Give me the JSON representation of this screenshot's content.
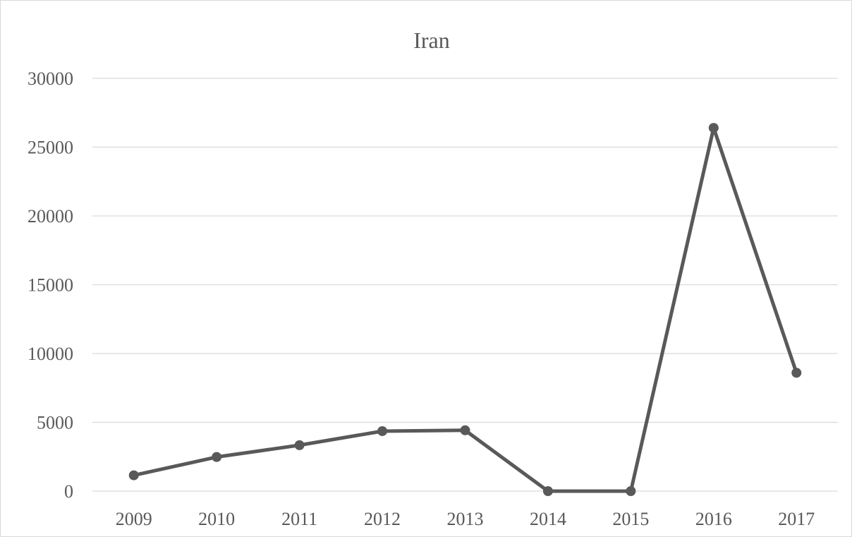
{
  "chart_data": {
    "type": "line",
    "title": "Iran",
    "xlabel": "",
    "ylabel": "",
    "categories": [
      "2009",
      "2010",
      "2011",
      "2012",
      "2013",
      "2014",
      "2015",
      "2016",
      "2017"
    ],
    "series": [
      {
        "values": [
          1150,
          2480,
          3340,
          4360,
          4420,
          0,
          0,
          26400,
          8600
        ]
      }
    ],
    "ylim": [
      0,
      30000
    ],
    "yticks": [
      0,
      5000,
      10000,
      15000,
      20000,
      25000,
      30000
    ],
    "grid": true,
    "legend": "none",
    "colors": {
      "line": "#595959",
      "grid": "#d9d9d9",
      "text": "#595959",
      "border": "#d9d9d9"
    }
  }
}
